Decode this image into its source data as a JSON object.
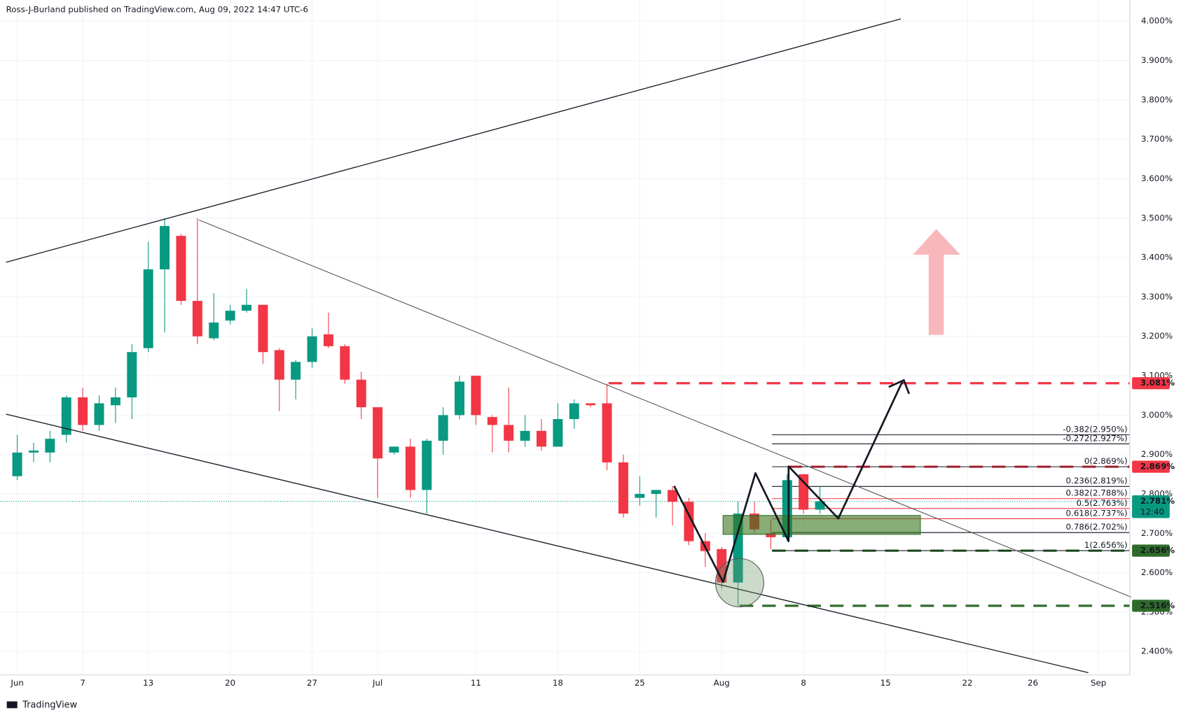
{
  "chart_data": {
    "type": "candlestick",
    "title": "Ross-J-Burland published on TradingView.com, Aug 09, 2022 14:47 UTC-6",
    "footer": "TradingView",
    "categories": [
      "Jun",
      null,
      null,
      null,
      "7",
      null,
      null,
      null,
      "13",
      null,
      null,
      null,
      null,
      "20",
      null,
      null,
      null,
      null,
      "27",
      null,
      null,
      null,
      "Jul",
      null,
      null,
      null,
      null,
      null,
      "11",
      null,
      null,
      null,
      null,
      "18",
      null,
      null,
      null,
      null,
      "25",
      null,
      null,
      null,
      null,
      "Aug",
      null,
      null,
      null,
      null,
      "8",
      null,
      null,
      null,
      null,
      "15",
      null,
      null,
      null,
      null,
      "22",
      null,
      null,
      null,
      "26",
      null,
      null,
      null,
      "Sep",
      null
    ],
    "open": [
      2.845,
      2.905,
      2.905,
      2.95,
      3.045,
      2.975,
      3.025,
      3.045,
      3.17,
      3.37,
      3.455,
      3.29,
      3.195,
      3.24,
      3.265,
      3.28,
      3.165,
      3.09,
      3.135,
      3.205,
      3.175,
      3.09,
      3.02,
      2.905,
      2.92,
      2.81,
      2.935,
      3.0,
      3.1,
      2.995,
      2.975,
      2.935,
      2.96,
      2.92,
      2.99,
      3.03,
      3.03,
      2.88,
      2.79,
      2.8,
      2.81,
      2.78,
      2.68,
      2.66,
      2.575,
      2.75,
      2.7,
      2.69,
      2.85,
      2.76,
      null,
      null,
      null,
      null,
      null,
      null,
      null,
      null,
      null,
      null,
      null,
      null,
      null,
      null,
      null,
      null,
      null,
      null
    ],
    "high": [
      2.95,
      2.93,
      2.96,
      3.05,
      3.07,
      3.05,
      3.07,
      3.18,
      3.44,
      3.5,
      3.46,
      3.5,
      3.31,
      3.28,
      3.32,
      3.28,
      3.17,
      3.14,
      3.22,
      3.26,
      3.18,
      3.11,
      3.02,
      2.92,
      2.94,
      2.94,
      3.02,
      3.1,
      3.1,
      3.0,
      3.07,
      3.0,
      2.99,
      3.03,
      3.04,
      3.03,
      3.08,
      2.9,
      2.845,
      2.81,
      2.82,
      2.79,
      2.7,
      2.665,
      2.78,
      2.78,
      2.735,
      2.85,
      2.85,
      2.82,
      null,
      null,
      null,
      null,
      null,
      null,
      null,
      null,
      null,
      null,
      null,
      null,
      null,
      null,
      null,
      null,
      null,
      null
    ],
    "low": [
      2.835,
      2.88,
      2.88,
      2.93,
      2.96,
      2.96,
      2.98,
      2.99,
      3.16,
      3.21,
      3.28,
      3.18,
      3.19,
      3.23,
      3.26,
      3.13,
      3.01,
      3.04,
      3.12,
      3.17,
      3.08,
      2.99,
      2.79,
      2.9,
      2.79,
      2.75,
      2.9,
      2.99,
      2.975,
      2.905,
      2.905,
      2.92,
      2.91,
      2.92,
      2.965,
      3.02,
      2.86,
      2.74,
      2.77,
      2.74,
      2.72,
      2.67,
      2.615,
      2.56,
      2.516,
      2.7,
      2.66,
      2.68,
      2.75,
      2.75,
      null,
      null,
      null,
      null,
      null,
      null,
      null,
      null,
      null,
      null,
      null,
      null,
      null,
      null,
      null,
      null,
      null,
      null
    ],
    "close": [
      2.905,
      2.91,
      2.94,
      3.045,
      2.975,
      3.03,
      3.045,
      3.16,
      3.37,
      3.48,
      3.29,
      3.2,
      3.235,
      3.265,
      3.28,
      3.16,
      3.09,
      3.135,
      3.2,
      3.175,
      3.09,
      3.02,
      2.89,
      2.92,
      2.81,
      2.935,
      3.0,
      3.085,
      3.0,
      2.975,
      2.935,
      2.96,
      2.92,
      2.99,
      3.03,
      3.025,
      2.88,
      2.75,
      2.8,
      2.81,
      2.78,
      2.68,
      2.655,
      2.575,
      2.75,
      2.71,
      2.69,
      2.835,
      2.76,
      2.781,
      null,
      null,
      null,
      null,
      null,
      null,
      null,
      null,
      null,
      null,
      null,
      null,
      null,
      null,
      null,
      null,
      null,
      null
    ],
    "up_color": "#089981",
    "down_color": "#f23645",
    "ylim": [
      2.3405,
      4.0537
    ],
    "yticks": [
      {
        "value": 2.4,
        "label": "2.400%"
      },
      {
        "value": 2.5,
        "label": "2.500%"
      },
      {
        "value": 2.6,
        "label": "2.600%"
      },
      {
        "value": 2.7,
        "label": "2.700%"
      },
      {
        "value": 2.8,
        "label": "2.800%"
      },
      {
        "value": 2.9,
        "label": "2.900%"
      },
      {
        "value": 3.0,
        "label": "3.000%"
      },
      {
        "value": 3.1,
        "label": "3.100%"
      },
      {
        "value": 3.2,
        "label": "3.200%"
      },
      {
        "value": 3.3,
        "label": "3.300%"
      },
      {
        "value": 3.4,
        "label": "3.400%"
      },
      {
        "value": 3.5,
        "label": "3.500%"
      },
      {
        "value": 3.6,
        "label": "3.600%"
      },
      {
        "value": 3.7,
        "label": "3.700%"
      },
      {
        "value": 3.8,
        "label": "3.800%"
      },
      {
        "value": 3.9,
        "label": "3.900%"
      },
      {
        "value": 4.0,
        "label": "4.000%"
      }
    ],
    "grid": true,
    "fib_levels": [
      {
        "value": 2.95,
        "label": "-0.382(2.950%)",
        "color": "#131722"
      },
      {
        "value": 2.927,
        "label": "-0.272(2.927%)",
        "color": "#131722"
      },
      {
        "value": 2.869,
        "label": "0(2.869%)",
        "color": "#131722"
      },
      {
        "value": 2.819,
        "label": "0.236(2.819%)",
        "color": "#131722"
      },
      {
        "value": 2.788,
        "label": "0.382(2.788%)",
        "color": "#f23645"
      },
      {
        "value": 2.763,
        "label": "0.5(2.763%)",
        "color": "#f23645"
      },
      {
        "value": 2.737,
        "label": "0.618(2.737%)",
        "color": "#f23645"
      },
      {
        "value": 2.702,
        "label": "0.786(2.702%)",
        "color": "#131722"
      },
      {
        "value": 2.656,
        "label": "1(2.656%)",
        "color": "#131722"
      }
    ],
    "levels": [
      {
        "value": 3.081,
        "label": "3.081%",
        "color": "#f23645"
      },
      {
        "value": 2.869,
        "label": "2.869%",
        "color": "#f23645"
      },
      {
        "value": 2.656,
        "label": "2.656%",
        "color": "#2e6b2a"
      },
      {
        "value": 2.516,
        "label": "2.516%",
        "color": "#2e6b2a"
      }
    ],
    "last_price": {
      "value": 2.781,
      "label": "2.781%",
      "countdown": "12:40",
      "color": "#089981"
    }
  }
}
